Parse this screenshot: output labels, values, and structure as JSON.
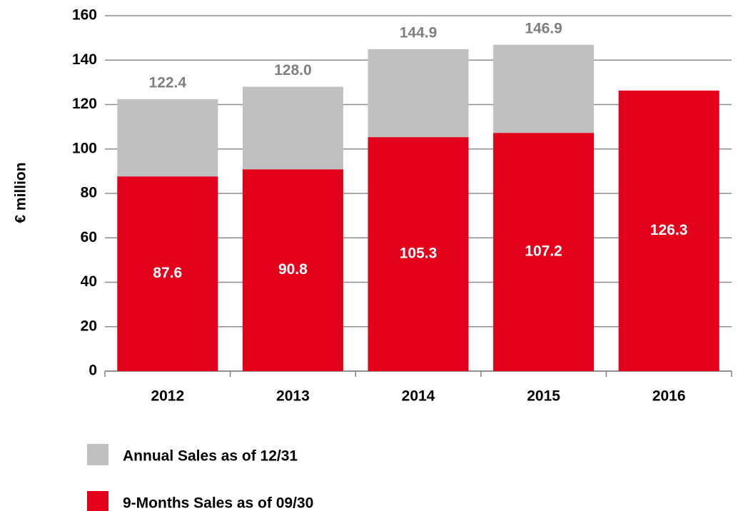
{
  "chart_data": {
    "type": "bar",
    "barmode": "overlay",
    "y_label": "€ million",
    "categories": [
      "2012",
      "2013",
      "2014",
      "2015",
      "2016"
    ],
    "series": [
      {
        "name": "Annual Sales as of 12/31",
        "color": "#c0c0c0",
        "label_color": "#7f7f7f",
        "values": [
          122.4,
          128.0,
          144.9,
          146.9,
          null
        ],
        "value_labels": [
          "122.4",
          "128.0",
          "144.9",
          "146.9",
          null
        ]
      },
      {
        "name": "9-Months Sales as of 09/30",
        "color": "#e2001a",
        "label_color": "#ffffff",
        "values": [
          87.6,
          90.8,
          105.3,
          107.2,
          126.3
        ]
      }
    ],
    "ylim": [
      0,
      160
    ],
    "yticks": [
      0,
      20,
      40,
      60,
      80,
      100,
      120,
      140,
      160
    ],
    "grid": true
  }
}
